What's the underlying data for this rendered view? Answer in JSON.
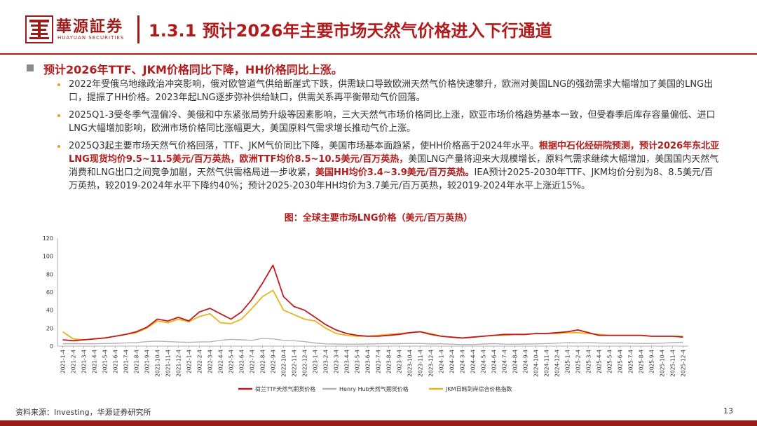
{
  "header": {
    "logo_cn": "華源証券",
    "logo_en": "HUAYUAN SECURITIES",
    "title": "1.3.1 预计2026年主要市场天然气价格进入下行通道"
  },
  "heading": "预计2026年TTF、JKM价格同比下降，HH价格同比上涨。",
  "bullets": {
    "b1": "2022年受俄乌地缘政治冲突影响，俄对欧管道气供给断崖式下跌，供需缺口导致欧洲天然气价格快速攀升，欧洲对美国LNG的强劲需求大幅增加了美国的LNG出口，提振了HH价格。2023年起LNG逐步弥补供给缺口，供需关系再平衡带动气价回落。",
    "b2": "2025Q1-3受冬季气温偏冷、美俄和中东紧张局势升级等因素影响，三大天然气市场价格同比上涨，欧亚市场价格趋势基本一致，但受春季后库存容量偏低、进口LNG大幅增加影响，欧洲市场价格同比涨幅更大，美国原料气需求增长推动气价上涨。",
    "b3_part1": "2025Q3起主要市场天然气价格回落，TTF、JKM气价同比下降，美国市场基本面趋紧，使HH价格高于2024年水平。",
    "b3_part2": "根据中石化经研院预测，预计2026年东北亚LNG现货均价9.5~11.5美元/百万英热，欧洲TTF均价8.5~10.5美元/百万英热，",
    "b3_part3": "美国LNG产量将迎来大规模增长，原料气需求继续大幅增加，美国国内天然气消费和LNG出口之间竞争加剧，天然气供需格局进一步收紧，",
    "b3_part4": "美国HH均价3.4~3.9美元/百万英热。",
    "b3_part5": "IEA预计2025-2030年TTF、JKM均价分别为8、8.5美元/百万英热，较2019-2024年水平下降约40%；预计2025-2030年HH均价为3.7美元/百万英热，较2019-2024年水平上涨近15%。"
  },
  "chart_title": "图：全球主要市场LNG价格（美元/百万英热）",
  "chart_data": {
    "type": "line",
    "ylim": [
      0,
      120
    ],
    "y_ticks": [
      0,
      20,
      40,
      60,
      80,
      100,
      120
    ],
    "x_tick_labels": [
      "2021-1-4",
      "2021-2-4",
      "2021-3-4",
      "2021-4-4",
      "2021-5-4",
      "2021-6-4",
      "2021-7-4",
      "2021-8-4",
      "2021-9-4",
      "2021-10-4",
      "2021-11-4",
      "2021-12-4",
      "2022-1-4",
      "2022-2-4",
      "2022-3-4",
      "2022-4-4",
      "2022-5-4",
      "2022-6-4",
      "2022-7-4",
      "2022-8-4",
      "2022-9-4",
      "2022-10-4",
      "2022-11-4",
      "2022-12-4",
      "2023-1-4",
      "2023-2-4",
      "2023-3-4",
      "2023-4-4",
      "2023-5-4",
      "2023-6-4",
      "2023-7-4",
      "2023-8-4",
      "2023-9-4",
      "2023-10-4",
      "2023-11-4",
      "2023-12-4",
      "2024-1-4",
      "2024-2-4",
      "2024-3-4",
      "2024-4-4",
      "2024-5-4",
      "2024-6-4",
      "2024-7-4",
      "2024-8-4",
      "2024-9-4",
      "2024-10-4",
      "2024-11-4",
      "2024-12-4",
      "2025-1-4",
      "2025-2-4",
      "2025-3-4",
      "2025-4-4",
      "2025-5-4",
      "2025-6-4",
      "2025-7-4",
      "2025-8-4",
      "2025-9-4",
      "2025-10-4",
      "2025-11-4",
      "2025-12-4"
    ],
    "series": [
      {
        "name": "荷兰TTF天然气期货价格",
        "color": "#c0191e",
        "values": [
          7,
          6,
          7,
          8,
          9,
          11,
          13,
          16,
          21,
          30,
          28,
          32,
          28,
          38,
          42,
          36,
          30,
          38,
          52,
          70,
          90,
          55,
          44,
          40,
          32,
          24,
          18,
          14,
          12,
          11,
          11,
          12,
          13,
          15,
          16,
          13,
          11,
          10,
          9,
          10,
          11,
          12,
          13,
          13,
          13,
          14,
          14,
          15,
          16,
          18,
          15,
          12,
          12,
          12,
          12,
          12,
          11,
          11,
          11,
          10
        ]
      },
      {
        "name": "Henry Hub天然气期货价格",
        "color": "#b3b3b3",
        "values": [
          2.6,
          2.7,
          2.6,
          2.6,
          2.9,
          3.1,
          3.6,
          4.0,
          5.0,
          5.5,
          5.0,
          4.5,
          4.2,
          4.6,
          4.8,
          6.5,
          7.5,
          7.0,
          6.5,
          8.5,
          8.0,
          6.5,
          6.0,
          5.0,
          3.5,
          2.5,
          2.3,
          2.2,
          2.2,
          2.3,
          2.6,
          2.7,
          2.7,
          3.0,
          3.0,
          2.5,
          2.6,
          2.2,
          1.7,
          1.7,
          2.3,
          2.7,
          2.2,
          2.1,
          2.3,
          2.5,
          2.8,
          3.3,
          3.8,
          3.6,
          4.0,
          3.4,
          3.3,
          3.4,
          3.2,
          3.0,
          3.0,
          3.3,
          3.9,
          4.3
        ]
      },
      {
        "name": "JKM日韩到岸综合价格指数",
        "color": "#e6b41e",
        "values": [
          16,
          8,
          7,
          8,
          9,
          11,
          13,
          15,
          20,
          28,
          26,
          30,
          27,
          33,
          36,
          26,
          25,
          30,
          42,
          55,
          62,
          40,
          35,
          30,
          28,
          20,
          14,
          12,
          11,
          11,
          12,
          13,
          14,
          15,
          16,
          14,
          11,
          10,
          9,
          10,
          11,
          12,
          12,
          13,
          13,
          14,
          14,
          14,
          15,
          15,
          14,
          13,
          12,
          12,
          12,
          12,
          11,
          11,
          11,
          11
        ]
      }
    ]
  },
  "footer": {
    "source": "资料来源：Investing，华源证券研究所",
    "page_number": "13"
  }
}
